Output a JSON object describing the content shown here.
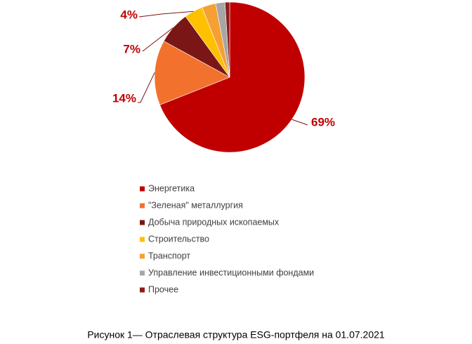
{
  "chart_data": {
    "type": "pie",
    "categories": [
      "Энергетика",
      "\"Зеленая\" металлургия",
      "Добыча природных ископаемых",
      "Строительство",
      "Транспорт",
      "Управление инвестиционными фондами",
      "Прочее"
    ],
    "values": [
      69,
      14,
      7,
      4,
      3,
      2,
      1
    ],
    "value_labels": [
      "69%",
      "14%",
      "7%",
      "4%",
      null,
      null,
      null
    ],
    "colors": [
      "#c00000",
      "#f2712c",
      "#7b1616",
      "#ffc000",
      "#f5a033",
      "#a6a6a6",
      "#8e1b1b"
    ],
    "legend": "bottom",
    "caption": "Рисунок 1— Отраслевая структура ESG-портфеля на 01.07.2021"
  }
}
